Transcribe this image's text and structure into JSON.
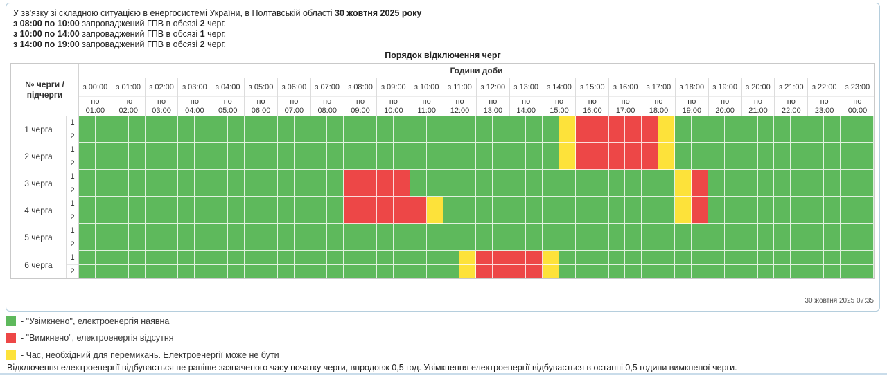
{
  "intro": {
    "lines": [
      [
        {
          "t": "У зв'язку зі складною ситуацією в енергосистемі України, в Полтавській області ",
          "b": false
        },
        {
          "t": "30 жовтня 2025 року",
          "b": true
        }
      ],
      [
        {
          "t": "з 08:00 по 10:00",
          "b": true
        },
        {
          "t": " запроваджений ГПВ в обсязі ",
          "b": false
        },
        {
          "t": "2",
          "b": true
        },
        {
          "t": " черг.",
          "b": false
        }
      ],
      [
        {
          "t": "з 10:00 по 14:00",
          "b": true
        },
        {
          "t": " запроваджений ГПВ в обсязі ",
          "b": false
        },
        {
          "t": "1",
          "b": true
        },
        {
          "t": " черг.",
          "b": false
        }
      ],
      [
        {
          "t": "з 14:00 по 19:00",
          "b": true
        },
        {
          "t": " запроваджений ГПВ в обсязі ",
          "b": false
        },
        {
          "t": "2",
          "b": true
        },
        {
          "t": " черг.",
          "b": false
        }
      ]
    ]
  },
  "table": {
    "title": "Порядок відключення черг",
    "corner_header": "№ черги / підчерги",
    "hours_header": "Години доби",
    "timestamp": "30 жовтня 2025 07:35",
    "columns": [
      {
        "l1": "з 00:00",
        "l2": "по",
        "l3": "01:00"
      },
      {
        "l1": "з 01:00",
        "l2": "по",
        "l3": "02:00"
      },
      {
        "l1": "з 02:00",
        "l2": "по",
        "l3": "03:00"
      },
      {
        "l1": "з 03:00",
        "l2": "по",
        "l3": "04:00"
      },
      {
        "l1": "з 04:00",
        "l2": "по",
        "l3": "05:00"
      },
      {
        "l1": "з 05:00",
        "l2": "по",
        "l3": "06:00"
      },
      {
        "l1": "з 06:00",
        "l2": "по",
        "l3": "07:00"
      },
      {
        "l1": "з 07:00",
        "l2": "по",
        "l3": "08:00"
      },
      {
        "l1": "з 08:00",
        "l2": "по",
        "l3": "09:00"
      },
      {
        "l1": "з 09:00",
        "l2": "по",
        "l3": "10:00"
      },
      {
        "l1": "з 10:00",
        "l2": "по",
        "l3": "11:00"
      },
      {
        "l1": "з 11:00",
        "l2": "по",
        "l3": "12:00"
      },
      {
        "l1": "з 12:00",
        "l2": "по",
        "l3": "13:00"
      },
      {
        "l1": "з 13:00",
        "l2": "по",
        "l3": "14:00"
      },
      {
        "l1": "з 14:00",
        "l2": "по",
        "l3": "15:00"
      },
      {
        "l1": "з 15:00",
        "l2": "по",
        "l3": "16:00"
      },
      {
        "l1": "з 16:00",
        "l2": "по",
        "l3": "17:00"
      },
      {
        "l1": "з 17:00",
        "l2": "по",
        "l3": "18:00"
      },
      {
        "l1": "з 18:00",
        "l2": "по",
        "l3": "19:00"
      },
      {
        "l1": "з 19:00",
        "l2": "по",
        "l3": "20:00"
      },
      {
        "l1": "з 20:00",
        "l2": "по",
        "l3": "21:00"
      },
      {
        "l1": "з 21:00",
        "l2": "по",
        "l3": "22:00"
      },
      {
        "l1": "з 22:00",
        "l2": "по",
        "l3": "23:00"
      },
      {
        "l1": "з 23:00",
        "l2": "по",
        "l3": "00:00"
      }
    ],
    "slot_minutes": 30,
    "slots_per_day": 48,
    "queues": [
      {
        "label": "1 черга",
        "subqueues": [
          {
            "label": "1",
            "segments": [
              {
                "from": "14:30",
                "to": "15:00",
                "state": "switching"
              },
              {
                "from": "15:00",
                "to": "17:30",
                "state": "off"
              },
              {
                "from": "17:30",
                "to": "18:00",
                "state": "switching"
              }
            ]
          },
          {
            "label": "2",
            "segments": [
              {
                "from": "14:30",
                "to": "15:00",
                "state": "switching"
              },
              {
                "from": "15:00",
                "to": "17:30",
                "state": "off"
              },
              {
                "from": "17:30",
                "to": "18:00",
                "state": "switching"
              }
            ]
          }
        ]
      },
      {
        "label": "2 черга",
        "subqueues": [
          {
            "label": "1",
            "segments": [
              {
                "from": "14:30",
                "to": "15:00",
                "state": "switching"
              },
              {
                "from": "15:00",
                "to": "17:30",
                "state": "off"
              },
              {
                "from": "17:30",
                "to": "18:00",
                "state": "switching"
              }
            ]
          },
          {
            "label": "2",
            "segments": [
              {
                "from": "14:30",
                "to": "15:00",
                "state": "switching"
              },
              {
                "from": "15:00",
                "to": "17:30",
                "state": "off"
              },
              {
                "from": "17:30",
                "to": "18:00",
                "state": "switching"
              }
            ]
          }
        ]
      },
      {
        "label": "3 черга",
        "subqueues": [
          {
            "label": "1",
            "segments": [
              {
                "from": "08:00",
                "to": "10:00",
                "state": "off"
              },
              {
                "from": "18:00",
                "to": "18:30",
                "state": "switching"
              },
              {
                "from": "18:30",
                "to": "19:00",
                "state": "off"
              }
            ]
          },
          {
            "label": "2",
            "segments": [
              {
                "from": "08:00",
                "to": "10:00",
                "state": "off"
              },
              {
                "from": "18:00",
                "to": "18:30",
                "state": "switching"
              },
              {
                "from": "18:30",
                "to": "19:00",
                "state": "off"
              }
            ]
          }
        ]
      },
      {
        "label": "4 черга",
        "subqueues": [
          {
            "label": "1",
            "segments": [
              {
                "from": "08:00",
                "to": "10:30",
                "state": "off"
              },
              {
                "from": "10:30",
                "to": "11:00",
                "state": "switching"
              },
              {
                "from": "18:00",
                "to": "18:30",
                "state": "switching"
              },
              {
                "from": "18:30",
                "to": "19:00",
                "state": "off"
              }
            ]
          },
          {
            "label": "2",
            "segments": [
              {
                "from": "08:00",
                "to": "10:30",
                "state": "off"
              },
              {
                "from": "10:30",
                "to": "11:00",
                "state": "switching"
              },
              {
                "from": "18:00",
                "to": "18:30",
                "state": "switching"
              },
              {
                "from": "18:30",
                "to": "19:00",
                "state": "off"
              }
            ]
          }
        ]
      },
      {
        "label": "5 черга",
        "subqueues": [
          {
            "label": "1",
            "segments": []
          },
          {
            "label": "2",
            "segments": []
          }
        ]
      },
      {
        "label": "6 черга",
        "subqueues": [
          {
            "label": "1",
            "segments": [
              {
                "from": "11:30",
                "to": "12:00",
                "state": "switching"
              },
              {
                "from": "12:00",
                "to": "14:00",
                "state": "off"
              },
              {
                "from": "14:00",
                "to": "14:30",
                "state": "switching"
              }
            ]
          },
          {
            "label": "2",
            "segments": [
              {
                "from": "11:30",
                "to": "12:00",
                "state": "switching"
              },
              {
                "from": "12:00",
                "to": "14:00",
                "state": "off"
              },
              {
                "from": "14:00",
                "to": "14:30",
                "state": "switching"
              }
            ]
          }
        ]
      }
    ]
  },
  "states": {
    "on": "#5eb95c",
    "off": "#ed4747",
    "switching": "#fde23a"
  },
  "legend": {
    "items": [
      {
        "state": "on",
        "label": "- \"Увімкнено\", електроенергія наявна"
      },
      {
        "state": "off",
        "label": "- \"Вимкнено\", електроенергія відсутня"
      },
      {
        "state": "switching",
        "label": "- Час, необхідний для перемикань. Електроенергії може не бути"
      }
    ]
  },
  "footer": {
    "text": "Відключення електроенергії відбувається не раніше зазначеного часу початку черги, впродовж 0,5 год. Увімкнення електроенергії відбувається в останні 0,5 години вимкненої черги."
  }
}
